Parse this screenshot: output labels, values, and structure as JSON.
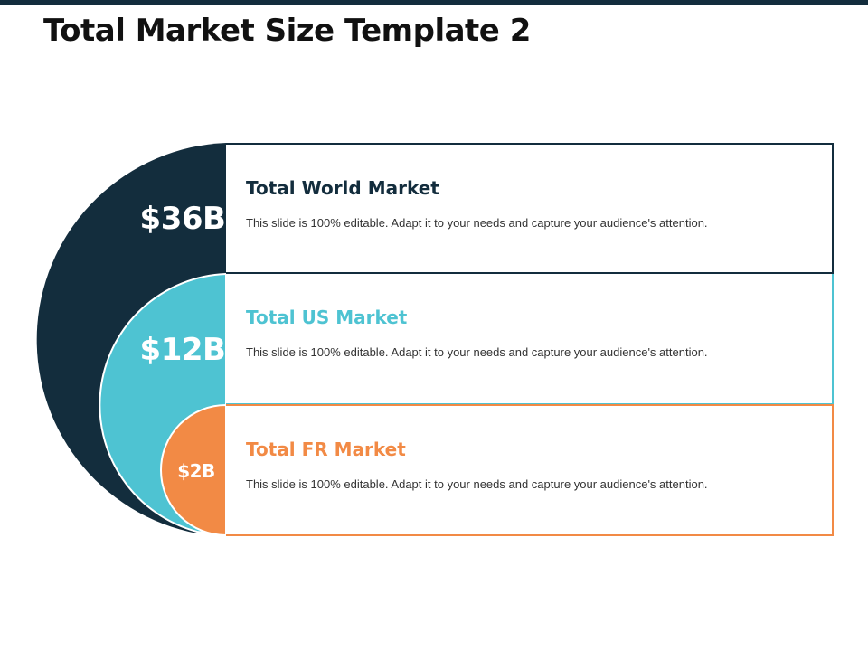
{
  "title": "Total Market Size Template 2",
  "colors": {
    "world": "#132d3d",
    "us": "#4ec3d2",
    "fr": "#f28a45"
  },
  "markets": [
    {
      "value": "$36B",
      "heading": "Total World Market",
      "body": "This slide is 100% editable. Adapt it to your needs and capture your audience's attention."
    },
    {
      "value": "$12B",
      "heading": "Total US Market",
      "body": "This slide is 100% editable. Adapt it to your needs and capture your audience's attention."
    },
    {
      "value": "$2B",
      "heading": "Total FR Market",
      "body": "This slide is 100% editable. Adapt it to your needs and capture your audience's attention."
    }
  ]
}
